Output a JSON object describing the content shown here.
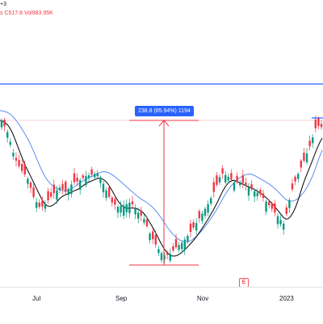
{
  "legend": {
    "top_line": "+3",
    "values_line_prefix": "s",
    "close": "C517.8",
    "volume": "Vol983.95K"
  },
  "measure_label": "238.8 (85.94%) 1194",
  "x_axis_labels": [
    "Jul",
    "Sep",
    "Nov",
    "2023"
  ],
  "earnings_badge": "E",
  "colors": {
    "up": "#089981",
    "down": "#f23645",
    "ma_fast": "#000000",
    "ma_slow": "#5b8def",
    "resistance": "#2962ff",
    "measure_line": "#f23645",
    "measure_label_bg": "#2962ff",
    "price_level": "#f7a3a9"
  },
  "chart_data": {
    "type": "candlestick",
    "x_ticks": [
      "Jul",
      "Sep",
      "Nov",
      "2023"
    ],
    "annotations": [
      "238.8 (85.94%) 1194"
    ]
  }
}
